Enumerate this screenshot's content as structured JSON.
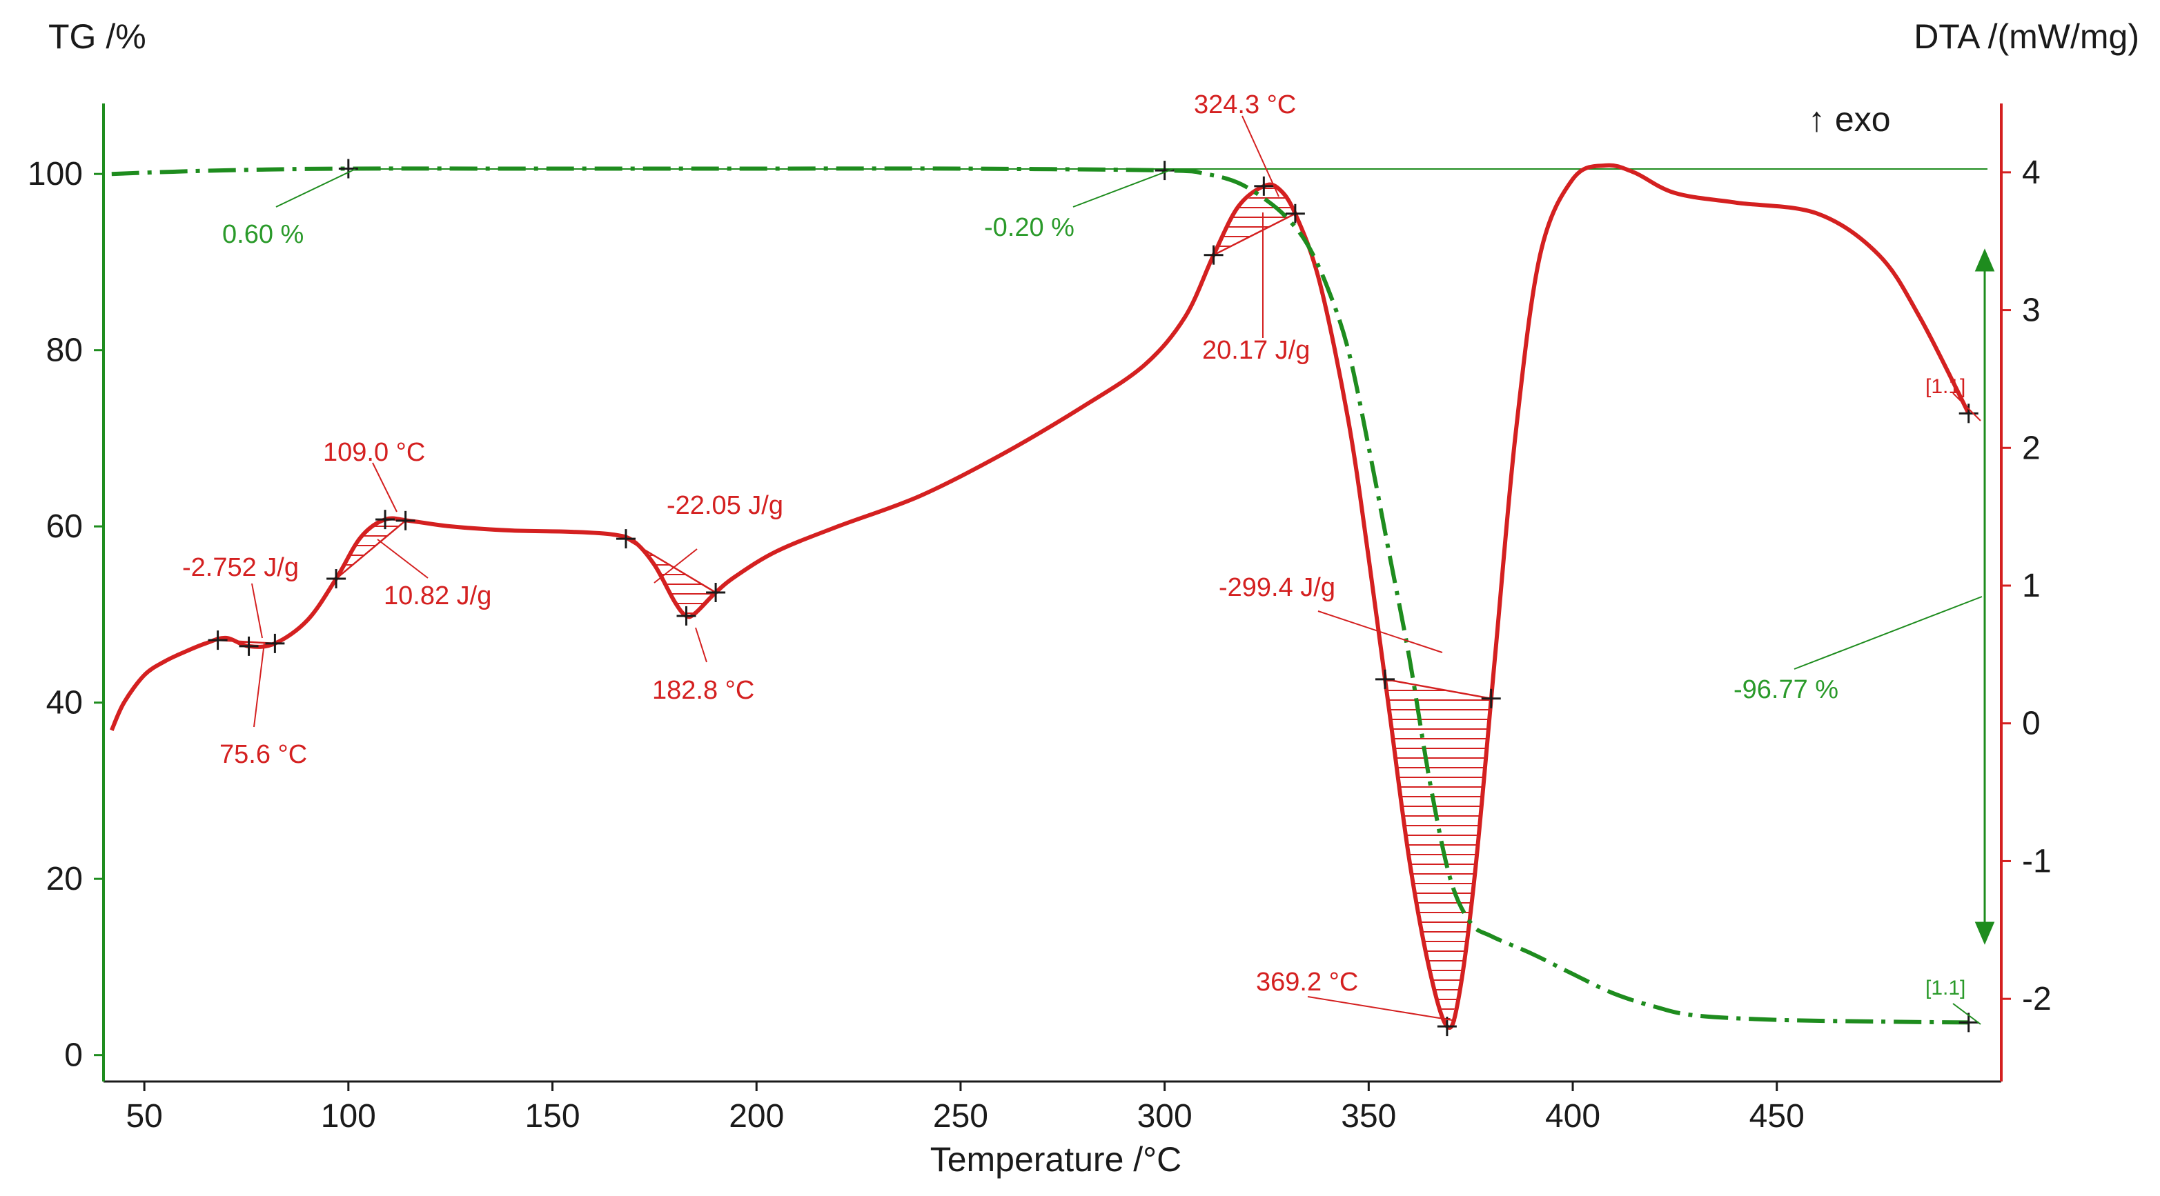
{
  "chart_data": {
    "type": "line",
    "title": "",
    "xlabel": "Temperature /°C",
    "ylabel_left": "TG /%",
    "ylabel_right": "DTA /(mW/mg)",
    "xlim": [
      40,
      505
    ],
    "ylim_left": [
      -3,
      108
    ],
    "ylim_right": [
      -2.6,
      4.5
    ],
    "x_ticks": [
      50,
      100,
      150,
      200,
      250,
      300,
      350,
      400,
      450
    ],
    "y_left_ticks": [
      0,
      20,
      40,
      60,
      80,
      100
    ],
    "y_right_ticks": [
      -2,
      -1,
      0,
      1,
      2,
      3,
      4
    ],
    "exo_label": "↑ exo",
    "colors": {
      "tg": "#1e8c1e",
      "dta": "#d42020",
      "axis_dark": "#1a1a1a"
    },
    "series": [
      {
        "name": "TG",
        "axis": "left",
        "style": "dash-dot",
        "x": [
          42,
          60,
          80,
          100,
          150,
          200,
          250,
          300,
          310,
          318,
          325,
          330,
          335,
          340,
          345,
          350,
          355,
          360,
          365,
          370,
          375,
          380,
          390,
          400,
          410,
          420,
          430,
          450,
          475,
          497
        ],
        "y": [
          100.0,
          100.3,
          100.5,
          100.6,
          100.6,
          100.6,
          100.6,
          100.4,
          100.0,
          99.0,
          97.0,
          95.0,
          92.0,
          87.0,
          80.0,
          69.0,
          57.0,
          45.0,
          31.0,
          20.0,
          15.0,
          13.5,
          11.5,
          9.2,
          7.0,
          5.5,
          4.5,
          4.0,
          3.8,
          3.7
        ]
      },
      {
        "name": "DTA",
        "axis": "right",
        "style": "solid",
        "x": [
          42,
          45,
          50,
          55,
          60,
          65,
          70,
          75.6,
          82,
          90,
          97,
          103,
          109,
          115,
          125,
          140,
          155,
          165,
          170,
          175,
          180,
          182.8,
          185,
          190,
          195,
          205,
          220,
          240,
          260,
          280,
          295,
          305,
          312,
          318,
          324.3,
          328,
          332,
          338,
          345,
          350,
          355,
          360,
          365,
          369.2,
          372,
          376,
          381,
          386,
          392,
          400,
          408,
          415,
          425,
          440,
          460,
          475,
          485,
          497
        ],
        "y": [
          -0.05,
          0.15,
          0.35,
          0.45,
          0.52,
          0.58,
          0.62,
          0.56,
          0.58,
          0.75,
          1.05,
          1.35,
          1.48,
          1.47,
          1.43,
          1.4,
          1.39,
          1.37,
          1.32,
          1.15,
          0.88,
          0.78,
          0.8,
          0.95,
          1.07,
          1.25,
          1.43,
          1.65,
          1.95,
          2.3,
          2.6,
          2.95,
          3.4,
          3.75,
          3.9,
          3.88,
          3.7,
          3.2,
          2.2,
          1.2,
          0.1,
          -1.0,
          -1.8,
          -2.2,
          -2.0,
          -1.1,
          0.5,
          2.1,
          3.4,
          3.95,
          4.05,
          4.0,
          3.85,
          3.78,
          3.7,
          3.4,
          2.95,
          2.25
        ]
      }
    ],
    "annotations_dta": [
      {
        "text": "109.0 °C"
      },
      {
        "text": "-2.752 J/g"
      },
      {
        "text": "10.82 J/g"
      },
      {
        "text": "75.6 °C"
      },
      {
        "text": "-22.05 J/g"
      },
      {
        "text": "182.8 °C"
      },
      {
        "text": "324.3 °C"
      },
      {
        "text": "20.17 J/g"
      },
      {
        "text": "-299.4 J/g"
      },
      {
        "text": "369.2 °C"
      },
      {
        "text": "[1.1]"
      }
    ],
    "annotations_tg": [
      {
        "text": "0.60 %"
      },
      {
        "text": "-0.20 %"
      },
      {
        "text": "-96.77 %"
      },
      {
        "text": "[1.1]"
      }
    ]
  }
}
